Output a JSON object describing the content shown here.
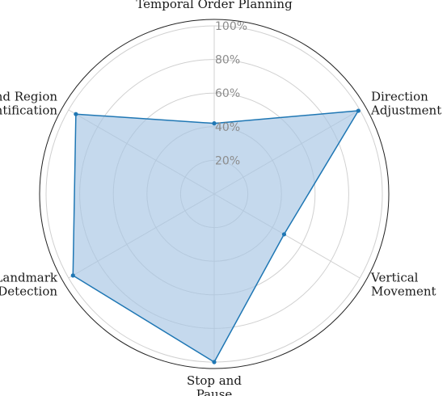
{
  "chart_data": {
    "type": "radar",
    "axes": [
      "Temporal Order Planning",
      "Direction Adjustment",
      "Vertical Movement",
      "Stop and Pause",
      "Landmark Detection",
      "Area and Region Identification"
    ],
    "axis_label_lines": [
      [
        "Temporal Order Planning"
      ],
      [
        "Direction",
        "Adjustment"
      ],
      [
        "Vertical",
        "Movement"
      ],
      [
        "Stop and",
        "Pause"
      ],
      [
        "Landmark",
        "Detection"
      ],
      [
        "Area and Region",
        "Identification"
      ]
    ],
    "series": [
      {
        "values": [
          42,
          99,
          48,
          100,
          97,
          95
        ]
      }
    ],
    "r_ticks": [
      20,
      40,
      60,
      80,
      100
    ],
    "r_tick_labels": [
      "20%",
      "40%",
      "60%",
      "80%",
      "100%"
    ],
    "rlim": [
      0,
      100
    ],
    "grid": true,
    "colors": {
      "line": "#1f77b4",
      "fill": "#a6c5e3",
      "grid": "#d0d0d0",
      "frame": "#222222"
    }
  }
}
